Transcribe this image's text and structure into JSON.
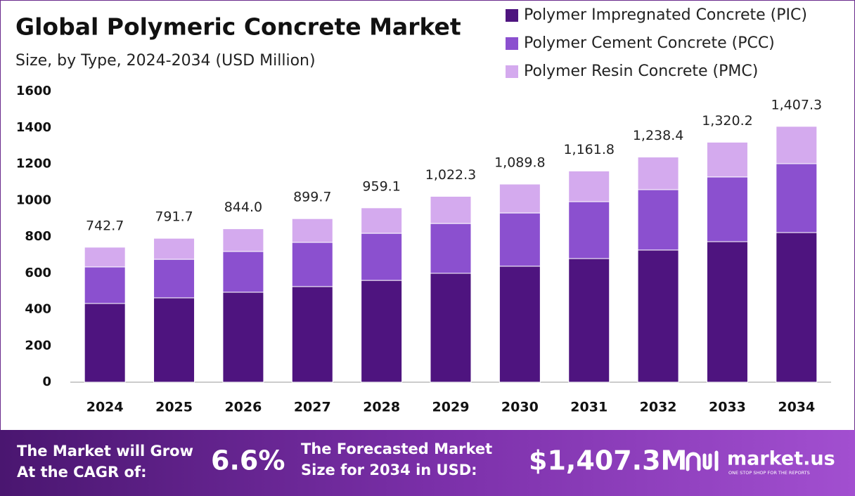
{
  "chart_data": {
    "type": "stacked-bar",
    "title": "Global Polymeric Concrete Market",
    "subtitle": "Size, by Type, 2024-2034 (USD Million)",
    "categories": [
      "2024",
      "2025",
      "2026",
      "2027",
      "2028",
      "2029",
      "2030",
      "2031",
      "2032",
      "2033",
      "2034"
    ],
    "series": [
      {
        "name": "Polymer Impregnated Concrete (PIC)",
        "color": "#4e147f",
        "values": [
          433,
          464,
          495,
          526,
          560,
          599,
          638,
          680,
          727,
          773,
          823
        ]
      },
      {
        "name": "Polymer Cement Concrete (PCC)",
        "color": "#8b50cf",
        "values": [
          201,
          212,
          224,
          243,
          259,
          274,
          293,
          313,
          332,
          356,
          379
        ]
      },
      {
        "name": "Polymer Resin Concrete (PMC)",
        "color": "#d4aaee",
        "values": [
          108.7,
          115.7,
          125,
          130.7,
          140.1,
          149.3,
          158.8,
          168.8,
          179.4,
          191.2,
          205.3
        ]
      }
    ],
    "totals": [
      742.7,
      791.7,
      844.0,
      899.7,
      959.1,
      1022.3,
      1089.8,
      1161.8,
      1238.4,
      1320.2,
      1407.3
    ],
    "total_labels": [
      "742.7",
      "791.7",
      "844.0",
      "899.7",
      "959.1",
      "1,022.3",
      "1,089.8",
      "1,161.8",
      "1,238.4",
      "1,320.2",
      "1,407.3"
    ],
    "ylim": [
      0,
      1600
    ],
    "yticks": [
      0,
      200,
      400,
      600,
      800,
      1000,
      1200,
      1400,
      1600
    ],
    "grid": false,
    "legend": "top-right"
  },
  "footer": {
    "cagr_text": [
      "The Market will Grow",
      "At the CAGR of:"
    ],
    "cagr_value": "6.6%",
    "forecast_text": [
      "The Forecasted Market",
      "Size for 2034 in USD:"
    ],
    "forecast_value": "$1,407.3M",
    "brand": "market.us",
    "tagline": "ONE STOP SHOP FOR THE REPORTS"
  }
}
